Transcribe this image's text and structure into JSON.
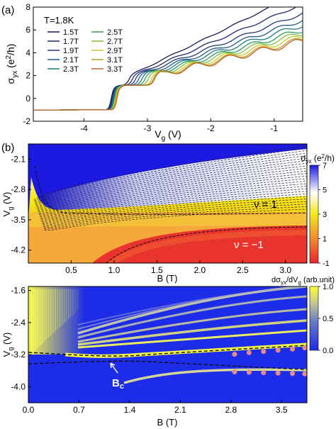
{
  "panels": {
    "a_label": "(a)",
    "b_label": "(b)"
  },
  "chart_data": [
    {
      "panel": "(a)",
      "type": "line",
      "annotation": "T=1.8K",
      "xlabel_main": "V",
      "xlabel_sub": "g",
      "xlabel_unit": " (V)",
      "ylabel_main": "σ",
      "ylabel_sub": "yx",
      "ylabel_unit": " (e",
      "ylabel_sup": "2",
      "ylabel_tail": "/h)",
      "xlim": [
        -4.8,
        -0.55
      ],
      "ylim": [
        -2,
        8
      ],
      "xticks": [
        -4,
        -3,
        -2,
        -1
      ],
      "xtick_labels": [
        "-4",
        "-3",
        "-2",
        "-1"
      ],
      "yticks": [
        -2,
        0,
        2,
        4,
        6,
        8
      ],
      "ytick_labels": [
        "-2",
        "0",
        "2",
        "4",
        "6",
        "8"
      ],
      "legend_placement": "upper-left",
      "series": [
        {
          "name": "1.5T",
          "color": "#1c1c5c",
          "x0": -3.6,
          "x1": -3.3,
          "onset": -2.6,
          "slope": 6.0,
          "plateau": 8.0,
          "steps": 0.15
        },
        {
          "name": "1.7T",
          "color": "#1f2a6e",
          "x0": -3.59,
          "x1": -3.25,
          "onset": -2.45,
          "slope": 5.2,
          "plateau": 8.0,
          "steps": 0.25
        },
        {
          "name": "1.9T",
          "color": "#223a7c",
          "x0": -3.58,
          "x1": -3.2,
          "onset": -2.3,
          "slope": 4.6,
          "plateau": 8.0,
          "steps": 0.35
        },
        {
          "name": "2.1T",
          "color": "#1f5a8a",
          "x0": -3.57,
          "x1": -3.15,
          "onset": -2.2,
          "slope": 4.2,
          "plateau": 8.0,
          "steps": 0.45
        },
        {
          "name": "2.3T",
          "color": "#1f7a80",
          "x0": -3.56,
          "x1": -3.1,
          "onset": -2.1,
          "slope": 3.9,
          "plateau": 8.0,
          "steps": 0.55
        },
        {
          "name": "2.5T",
          "color": "#2e9a5e",
          "x0": -3.55,
          "x1": -3.05,
          "onset": -2.0,
          "slope": 3.6,
          "plateau": 7.6,
          "steps": 0.6
        },
        {
          "name": "2.7T",
          "color": "#7fbf3c",
          "x0": -3.54,
          "x1": -3.0,
          "onset": -1.9,
          "slope": 3.4,
          "plateau": 7.0,
          "steps": 0.65
        },
        {
          "name": "2.9T",
          "color": "#c9c92a",
          "x0": -3.53,
          "x1": -2.95,
          "onset": -1.85,
          "slope": 3.2,
          "plateau": 6.6,
          "steps": 0.7
        },
        {
          "name": "3.1T",
          "color": "#c79a2a",
          "x0": -3.52,
          "x1": -2.92,
          "onset": -1.8,
          "slope": 3.0,
          "plateau": 6.3,
          "steps": 0.75
        },
        {
          "name": "3.3T",
          "color": "#b5662a",
          "x0": -3.51,
          "x1": -2.9,
          "onset": -1.75,
          "slope": 2.9,
          "plateau": 6.0,
          "steps": 0.8
        }
      ]
    },
    {
      "panel": "(b) upper",
      "type": "heatmap",
      "xlabel": "B (T)",
      "ylabel_main": "V",
      "ylabel_sub": "g",
      "ylabel_unit": " (V)",
      "xlim": [
        0,
        3.25
      ],
      "ylim": [
        -4.5,
        -1.75
      ],
      "xticks": [
        0.5,
        1.0,
        1.5,
        2.0,
        2.5,
        3.0
      ],
      "xtick_labels": [
        "0.5",
        "1.0",
        "1.5",
        "2.0",
        "2.5",
        "3.0"
      ],
      "yticks": [
        -2.1,
        -2.8,
        -3.5,
        -4.2
      ],
      "ytick_labels": [
        "-2.1",
        "-2.8",
        "-3.5",
        "-4.2"
      ],
      "colorbar_label_main": "σ",
      "colorbar_label_sub": "yx",
      "colorbar_label_unit": " (e",
      "colorbar_label_sup": "2",
      "colorbar_label_tail": "/h)",
      "colorbar_range": [
        -1,
        7
      ],
      "colorbar_ticks": [
        7,
        5,
        3,
        1,
        -1
      ],
      "colorbar_tick_labels": [
        "7",
        "5",
        "3",
        "1",
        "-1"
      ],
      "colorbar_colors": [
        "#e8232b",
        "#f28a2e",
        "#f6e81a",
        "#ffffff",
        "#1c1ae0"
      ],
      "annotations": [
        {
          "text": "ν = 1",
          "x": 2.65,
          "y": -3.1
        },
        {
          "text": "ν = −1",
          "x": 2.3,
          "y": -4.0
        }
      ]
    },
    {
      "panel": "(b) lower",
      "type": "heatmap",
      "xlabel": "B (T)",
      "ylabel_main": "V",
      "ylabel_sub": "g",
      "ylabel_unit": " (V)",
      "xlim": [
        0,
        3.85
      ],
      "ylim": [
        -4.4,
        -1.5
      ],
      "xticks": [
        0.0,
        0.7,
        1.4,
        2.1,
        2.8,
        3.5
      ],
      "xtick_labels": [
        "0.0",
        "0.7",
        "1.4",
        "2.1",
        "2.8",
        "3.5"
      ],
      "yticks": [
        -1.6,
        -2.4,
        -3.2,
        -4.0
      ],
      "ytick_labels": [
        "-1.6",
        "-2.4",
        "-3.2",
        "-4.0"
      ],
      "colorbar_label_main": "dσ",
      "colorbar_label_sub": "yx",
      "colorbar_label_mid": "/dV",
      "colorbar_label_sub2": "g",
      "colorbar_label_unit": " (arb.unit)",
      "colorbar_range": [
        0,
        1
      ],
      "colorbar_ticks": [
        1.0,
        0.5,
        0.0
      ],
      "colorbar_tick_labels": [
        "1.0",
        "0.5",
        "0.0"
      ],
      "colorbar_colors": [
        "#1c2ce8",
        "#6a7ac8",
        "#c8c890",
        "#ffff30"
      ],
      "annotation_main": "B",
      "annotation_sub": "c",
      "bc_point": {
        "x": 1.05,
        "y": -3.45
      },
      "markers_upper": {
        "x": [
          2.85,
          3.05,
          3.25,
          3.45,
          3.65,
          3.82
        ],
        "y": [
          -3.19,
          -3.15,
          -3.12,
          -3.09,
          -3.06,
          -3.03
        ]
      },
      "markers_lower": {
        "x": [
          2.85,
          3.05,
          3.25,
          3.45,
          3.65,
          3.82
        ],
        "y": [
          -3.63,
          -3.64,
          -3.65,
          -3.66,
          -3.67,
          -3.68
        ]
      },
      "marker_color": "#e58a8a"
    }
  ]
}
